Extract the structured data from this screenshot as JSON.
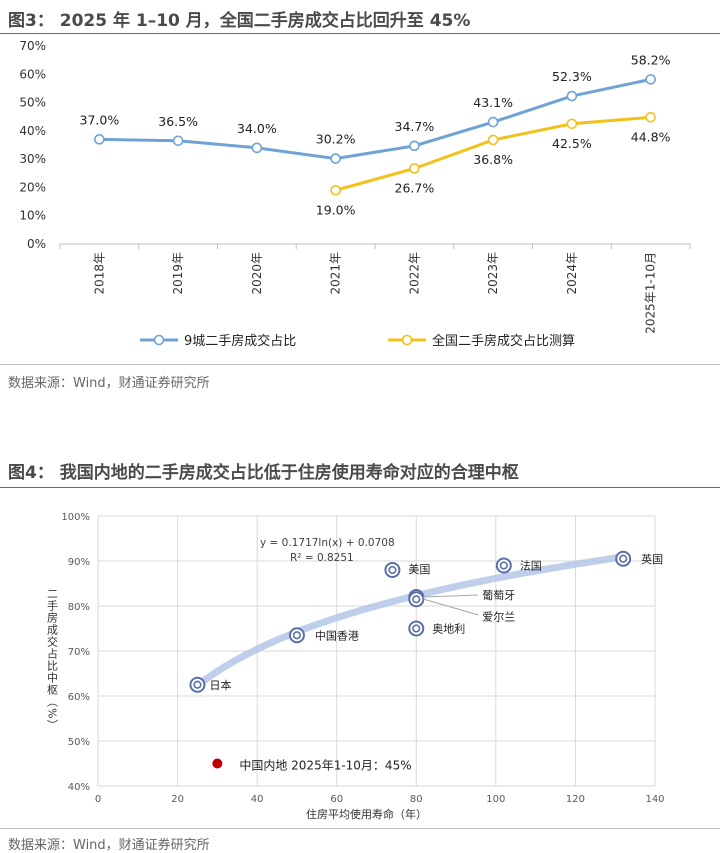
{
  "fig3": {
    "title": "图3： 2025 年 1–10 月，全国二手房成交占比回升至 45%",
    "source": "数据来源：Wind，财通证券研究所"
  },
  "fig4": {
    "title": "图4： 我国内地的二手房成交占比低于住房使用寿命对应的合理中枢",
    "source": "数据来源：Wind，财通证券研究所"
  },
  "chart_data": [
    {
      "type": "line",
      "categories": [
        "2018年",
        "2019年",
        "2020年",
        "2021年",
        "2022年",
        "2023年",
        "2024年",
        "2025年1-10月"
      ],
      "series": [
        {
          "name": "9城二手房成交占比",
          "color": "#6fa3d6",
          "values": [
            37.0,
            36.5,
            34.0,
            30.2,
            34.7,
            43.1,
            52.3,
            58.2
          ],
          "labels": [
            "37.0%",
            "36.5%",
            "34.0%",
            "30.2%",
            "34.7%",
            "43.1%",
            "52.3%",
            "58.2%"
          ]
        },
        {
          "name": "全国二手房成交占比测算",
          "color": "#f4c01a",
          "values": [
            null,
            null,
            null,
            19.0,
            26.7,
            36.8,
            42.5,
            44.8
          ],
          "labels": [
            "",
            "",
            "",
            "19.0%",
            "26.7%",
            "36.8%",
            "42.5%",
            "44.8%"
          ]
        }
      ],
      "ylim": [
        0,
        70
      ],
      "yticks": [
        "0%",
        "10%",
        "20%",
        "30%",
        "40%",
        "50%",
        "60%",
        "70%"
      ],
      "legend": "bottom"
    },
    {
      "type": "scatter",
      "xlabel": "住房平均使用寿命（年）",
      "ylabel": "二手房成交占比中枢（%）",
      "xlim": [
        0,
        140
      ],
      "ylim": [
        40,
        100
      ],
      "xticks": [
        "0",
        "20",
        "40",
        "60",
        "80",
        "100",
        "120",
        "140"
      ],
      "yticks": [
        "40%",
        "50%",
        "60%",
        "70%",
        "80%",
        "90%",
        "100%"
      ],
      "points": [
        {
          "label": "日本",
          "x": 25,
          "y": 62.5
        },
        {
          "label": "中国香港",
          "x": 50,
          "y": 73.5
        },
        {
          "label": "美国",
          "x": 74,
          "y": 88
        },
        {
          "label": "葡萄牙",
          "x": 80,
          "y": 82
        },
        {
          "label": "爱尔兰",
          "x": 80,
          "y": 81.5
        },
        {
          "label": "奥地利",
          "x": 80,
          "y": 75
        },
        {
          "label": "法国",
          "x": 102,
          "y": 89
        },
        {
          "label": "英国",
          "x": 132,
          "y": 90.5
        }
      ],
      "highlight": {
        "label": "中国内地 2025年1-10月：45%",
        "x": 30,
        "y": 45,
        "color": "#c00000"
      },
      "trend": {
        "equation": "y = 0.1717ln(x) + 0.0708",
        "r2": "R² = 0.8251"
      }
    }
  ]
}
